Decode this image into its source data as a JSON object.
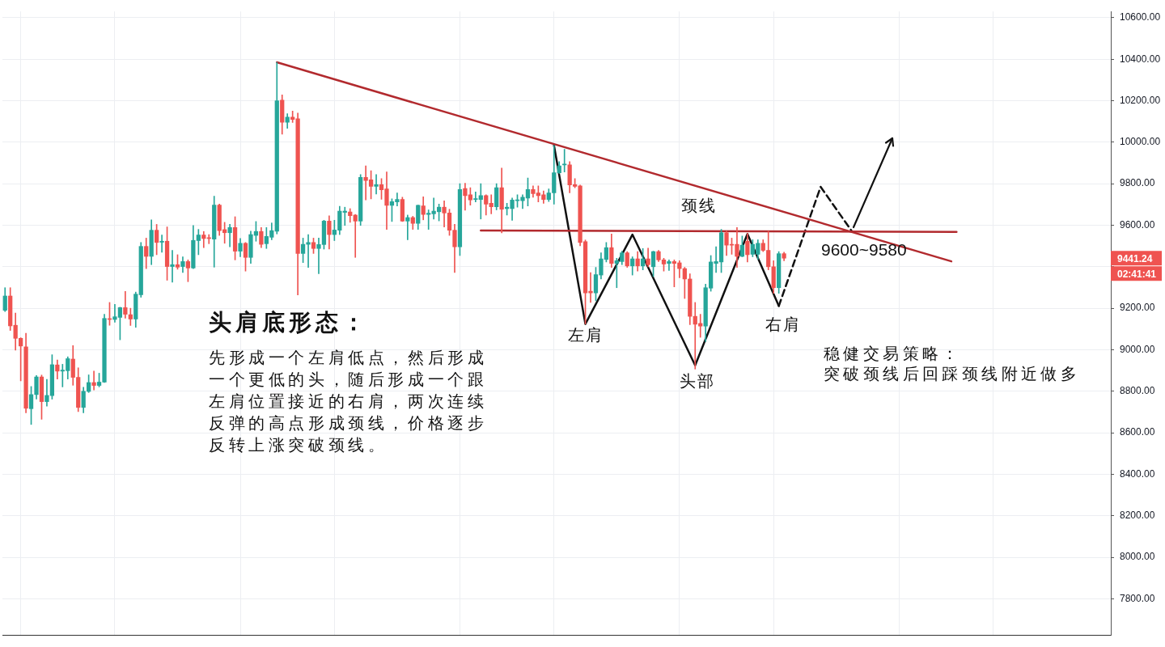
{
  "chart_data": {
    "type": "candlestick",
    "title": "头肩底形态：",
    "categories": [
      null,
      null,
      null,
      null,
      null,
      null,
      null,
      null,
      null,
      null,
      null,
      null,
      null,
      null,
      null,
      null,
      null,
      null,
      null,
      null,
      null,
      null,
      null,
      null,
      null,
      null,
      null,
      null,
      null,
      null,
      null,
      null,
      null,
      null,
      null,
      null,
      null,
      null,
      null,
      null,
      null,
      null,
      null,
      null,
      null,
      null,
      null,
      null,
      null,
      null,
      null,
      null,
      null,
      null,
      null,
      null,
      null,
      null,
      null,
      null,
      null,
      null,
      null,
      null,
      null,
      null,
      null,
      null,
      null,
      null,
      null,
      null,
      null,
      null,
      null,
      null,
      null,
      null,
      null,
      null,
      null,
      null,
      null,
      null,
      null,
      null,
      null,
      null,
      null,
      null,
      null,
      null,
      null,
      null,
      null,
      null,
      null,
      null,
      null,
      null,
      null,
      null,
      null,
      null,
      null,
      null,
      null,
      null,
      null,
      null,
      null,
      null,
      null,
      null,
      null,
      null,
      null,
      null,
      null,
      null,
      null,
      null,
      null,
      null,
      null,
      null,
      null,
      null,
      null,
      null,
      null,
      null,
      null,
      null,
      null,
      null,
      null,
      null,
      null,
      null,
      null,
      null,
      null,
      null,
      null,
      null,
      null,
      null,
      null,
      null,
      null,
      null,
      null,
      null,
      null,
      null,
      null,
      null,
      null,
      null,
      null,
      null,
      null,
      null,
      null,
      null,
      null,
      null,
      null,
      null,
      null,
      null,
      null,
      null,
      null,
      null,
      null,
      null,
      null,
      null,
      null,
      null,
      null,
      null,
      null,
      null,
      null,
      null,
      null,
      null,
      null,
      null,
      null,
      null,
      null,
      null,
      null,
      null,
      null,
      null,
      null,
      null,
      null,
      null,
      null,
      null,
      null,
      null,
      null,
      null,
      null,
      null
    ],
    "ohlc": [
      [
        9190,
        9299,
        9184,
        9259
      ],
      [
        9259,
        9299,
        9093,
        9115
      ],
      [
        9118,
        9177,
        8998,
        9055
      ],
      [
        9055,
        9058,
        8850,
        9018
      ],
      [
        9014,
        9079,
        8696,
        8718
      ],
      [
        8716,
        8823,
        8640,
        8784
      ],
      [
        8784,
        8876,
        8762,
        8869
      ],
      [
        8869,
        8878,
        8665,
        8750
      ],
      [
        8750,
        8857,
        8728,
        8780
      ],
      [
        8779,
        8976,
        8762,
        8928
      ],
      [
        8927,
        8951,
        8859,
        8897
      ],
      [
        8897,
        8930,
        8821,
        8902
      ],
      [
        8899,
        8966,
        8859,
        8957
      ],
      [
        8955,
        9020,
        8829,
        8867
      ],
      [
        8867,
        8913,
        8702,
        8722
      ],
      [
        8722,
        8819,
        8696,
        8800
      ],
      [
        8799,
        8879,
        8794,
        8842
      ],
      [
        8842,
        8897,
        8806,
        8828
      ],
      [
        8828,
        8887,
        8821,
        8844
      ],
      [
        8844,
        9171,
        8842,
        9151
      ],
      [
        9149,
        9228,
        9118,
        9146
      ],
      [
        9146,
        9219,
        9133,
        9159
      ],
      [
        9156,
        9205,
        9048,
        9203
      ],
      [
        9203,
        9281,
        9152,
        9171
      ],
      [
        9169,
        9200,
        9117,
        9148
      ],
      [
        9148,
        9278,
        9108,
        9268
      ],
      [
        9265,
        9517,
        9253,
        9498
      ],
      [
        9498,
        9538,
        9391,
        9450
      ],
      [
        9450,
        9626,
        9410,
        9576
      ],
      [
        9576,
        9604,
        9458,
        9517
      ],
      [
        9518,
        9553,
        9470,
        9523
      ],
      [
        9523,
        9592,
        9335,
        9401
      ],
      [
        9401,
        9479,
        9326,
        9410
      ],
      [
        9410,
        9458,
        9388,
        9398
      ],
      [
        9401,
        9448,
        9372,
        9425
      ],
      [
        9425,
        9433,
        9328,
        9394
      ],
      [
        9394,
        9599,
        9391,
        9527
      ],
      [
        9526,
        9580,
        9458,
        9553
      ],
      [
        9553,
        9570,
        9492,
        9536
      ],
      [
        9540,
        9555,
        9511,
        9536
      ],
      [
        9533,
        9740,
        9398,
        9697
      ],
      [
        9697,
        9702,
        9551,
        9574
      ],
      [
        9579,
        9614,
        9513,
        9564
      ],
      [
        9564,
        9605,
        9496,
        9589
      ],
      [
        9589,
        9641,
        9433,
        9475
      ],
      [
        9475,
        9536,
        9448,
        9513
      ],
      [
        9513,
        9517,
        9379,
        9445
      ],
      [
        9445,
        9571,
        9416,
        9555
      ],
      [
        9551,
        9618,
        9523,
        9570
      ],
      [
        9570,
        9589,
        9492,
        9508
      ],
      [
        9511,
        9589,
        9488,
        9546
      ],
      [
        9542,
        9611,
        9530,
        9574
      ],
      [
        9571,
        10385,
        9558,
        10200
      ],
      [
        10203,
        10228,
        10039,
        10096
      ],
      [
        10096,
        10137,
        10067,
        10121
      ],
      [
        10121,
        10150,
        10095,
        10110
      ],
      [
        10113,
        10140,
        9264,
        9464
      ],
      [
        9464,
        9538,
        9420,
        9508
      ],
      [
        9508,
        9555,
        9397,
        9517
      ],
      [
        9517,
        9538,
        9464,
        9488
      ],
      [
        9488,
        9538,
        9366,
        9507
      ],
      [
        9507,
        9624,
        9485,
        9620
      ],
      [
        9620,
        9645,
        9485,
        9555
      ],
      [
        9555,
        9624,
        9526,
        9577
      ],
      [
        9576,
        9691,
        9555,
        9668
      ],
      [
        9662,
        9687,
        9599,
        9668
      ],
      [
        9664,
        9680,
        9614,
        9646
      ],
      [
        9649,
        9652,
        9445,
        9620
      ],
      [
        9620,
        9844,
        9599,
        9831
      ],
      [
        9831,
        9886,
        9722,
        9816
      ],
      [
        9819,
        9863,
        9727,
        9787
      ],
      [
        9787,
        9844,
        9750,
        9796
      ],
      [
        9796,
        9825,
        9725,
        9771
      ],
      [
        9775,
        9857,
        9580,
        9696
      ],
      [
        9696,
        9727,
        9618,
        9714
      ],
      [
        9712,
        9756,
        9693,
        9724
      ],
      [
        9724,
        9735,
        9618,
        9620
      ],
      [
        9620,
        9649,
        9530,
        9637
      ],
      [
        9637,
        9643,
        9580,
        9609
      ],
      [
        9609,
        9697,
        9580,
        9696
      ],
      [
        9693,
        9737,
        9626,
        9652
      ],
      [
        9652,
        9674,
        9580,
        9658
      ],
      [
        9655,
        9731,
        9630,
        9668
      ],
      [
        9665,
        9702,
        9621,
        9687
      ],
      [
        9687,
        9718,
        9592,
        9659
      ],
      [
        9659,
        9677,
        9551,
        9576
      ],
      [
        9576,
        9605,
        9372,
        9496
      ],
      [
        9496,
        9800,
        9454,
        9772
      ],
      [
        9777,
        9802,
        9672,
        9743
      ],
      [
        9747,
        9781,
        9697,
        9722
      ],
      [
        9724,
        9760,
        9712,
        9728
      ],
      [
        9724,
        9800,
        9630,
        9743
      ],
      [
        9743,
        9747,
        9649,
        9702
      ],
      [
        9706,
        9747,
        9655,
        9689
      ],
      [
        9689,
        9800,
        9674,
        9781
      ],
      [
        9781,
        9875,
        9563,
        9677
      ],
      [
        9680,
        9706,
        9649,
        9687
      ],
      [
        9680,
        9731,
        9624,
        9721
      ],
      [
        9718,
        9747,
        9687,
        9722
      ],
      [
        9718,
        9747,
        9680,
        9735
      ],
      [
        9731,
        9828,
        9693,
        9772
      ],
      [
        9772,
        9790,
        9735,
        9752
      ],
      [
        9756,
        9790,
        9712,
        9743
      ],
      [
        9747,
        9765,
        9706,
        9724
      ],
      [
        9724,
        9775,
        9714,
        9756
      ],
      [
        9756,
        9985,
        9702,
        9853
      ],
      [
        9853,
        9907,
        9850,
        9886
      ],
      [
        9891,
        9966,
        9857,
        9894
      ],
      [
        9891,
        9907,
        9756,
        9794
      ],
      [
        9796,
        9825,
        9781,
        9787
      ],
      [
        9790,
        9794,
        9501,
        9517
      ],
      [
        9521,
        9529,
        9124,
        9274
      ],
      [
        9282,
        9372,
        9228,
        9274
      ],
      [
        9274,
        9397,
        9236,
        9362
      ],
      [
        9360,
        9467,
        9341,
        9438
      ],
      [
        9435,
        9517,
        9423,
        9492
      ],
      [
        9492,
        9558,
        9397,
        9416
      ],
      [
        9416,
        9441,
        9299,
        9429
      ],
      [
        9425,
        9475,
        9410,
        9467
      ],
      [
        9467,
        9473,
        9397,
        9404
      ],
      [
        9404,
        9448,
        9360,
        9438
      ],
      [
        9438,
        9473,
        9379,
        9404
      ],
      [
        9404,
        9488,
        9385,
        9438
      ],
      [
        9438,
        9490,
        9400,
        9410
      ],
      [
        9400,
        9475,
        9353,
        9473
      ],
      [
        9473,
        9479,
        9425,
        9433
      ],
      [
        9433,
        9441,
        9379,
        9413
      ],
      [
        9416,
        9433,
        9382,
        9425
      ],
      [
        9425,
        9433,
        9303,
        9416
      ],
      [
        9419,
        9429,
        9347,
        9391
      ],
      [
        9391,
        9397,
        9247,
        9341
      ],
      [
        9341,
        9366,
        9121,
        9161
      ],
      [
        9161,
        9228,
        8907,
        9123
      ],
      [
        9127,
        9171,
        9060,
        9114
      ],
      [
        9114,
        9316,
        9039,
        9299
      ],
      [
        9297,
        9454,
        9282,
        9423
      ],
      [
        9416,
        9496,
        9372,
        9425
      ],
      [
        9423,
        9580,
        9372,
        9564
      ],
      [
        9564,
        9571,
        9454,
        9504
      ],
      [
        9508,
        9538,
        9460,
        9504
      ],
      [
        9508,
        9589,
        9397,
        9450
      ],
      [
        9450,
        9548,
        9448,
        9504
      ],
      [
        9523,
        9561,
        9423,
        9458
      ],
      [
        9460,
        9530,
        9448,
        9508
      ],
      [
        9460,
        9530,
        9435,
        9513
      ],
      [
        9513,
        9530,
        9473,
        9479
      ],
      [
        9479,
        9571,
        9385,
        9400
      ],
      [
        9400,
        9429,
        9272,
        9299
      ],
      [
        9299,
        9473,
        9272,
        9463
      ],
      [
        9463,
        9470,
        9429,
        9441.24
      ],
      null,
      null,
      null,
      null,
      null,
      null,
      null,
      null,
      null,
      null,
      null,
      null,
      null,
      null,
      null,
      null,
      null,
      null,
      null,
      null,
      null,
      null,
      null,
      null,
      null,
      null,
      null,
      null,
      null,
      null,
      null,
      null,
      null,
      null,
      null,
      null,
      null,
      null,
      null,
      null,
      null,
      null,
      null,
      null,
      null,
      null,
      null,
      null,
      null,
      null,
      null,
      null,
      null,
      null,
      null,
      null,
      null,
      null,
      null,
      null,
      null,
      null
    ],
    "colors": [
      "#26a69a",
      "#ef5350",
      "#ef5350",
      "#ef5350",
      "#ef5350",
      "#26a69a",
      "#26a69a",
      "#ef5350",
      "#26a69a",
      "#26a69a",
      "#ef5350",
      "#26a69a",
      "#26a69a",
      "#ef5350",
      "#ef5350",
      "#26a69a",
      "#26a69a",
      "#ef5350",
      "#26a69a",
      "#26a69a",
      "#ef5350",
      "#26a69a",
      "#26a69a",
      "#ef5350",
      "#ef5350",
      "#26a69a",
      "#26a69a",
      "#ef5350",
      "#26a69a",
      "#ef5350",
      "#26a69a",
      "#ef5350",
      "#26a69a",
      "#ef5350",
      "#26a69a",
      "#ef5350",
      "#26a69a",
      "#26a69a",
      "#ef5350",
      "#ef5350",
      "#26a69a",
      "#ef5350",
      "#ef5350",
      "#26a69a",
      "#ef5350",
      "#26a69a",
      "#ef5350",
      "#26a69a",
      "#26a69a",
      "#ef5350",
      "#26a69a",
      "#26a69a",
      "#26a69a",
      "#ef5350",
      "#26a69a",
      "#ef5350",
      "#ef5350",
      "#26a69a",
      "#26a69a",
      "#ef5350",
      "#26a69a",
      "#26a69a",
      "#ef5350",
      "#26a69a",
      "#26a69a",
      "#26a69a",
      "#ef5350",
      "#ef5350",
      "#26a69a",
      "#ef5350",
      "#ef5350",
      "#26a69a",
      "#ef5350",
      "#ef5350",
      "#26a69a",
      "#26a69a",
      "#ef5350",
      "#26a69a",
      "#ef5350",
      "#26a69a",
      "#ef5350",
      "#26a69a",
      "#26a69a",
      "#26a69a",
      "#ef5350",
      "#ef5350",
      "#ef5350",
      "#26a69a",
      "#ef5350",
      "#ef5350",
      "#26a69a",
      "#26a69a",
      "#ef5350",
      "#ef5350",
      "#26a69a",
      "#ef5350",
      "#26a69a",
      "#26a69a",
      "#26a69a",
      "#26a69a",
      "#26a69a",
      "#ef5350",
      "#ef5350",
      "#ef5350",
      "#26a69a",
      "#26a69a",
      "#26a69a",
      "#26a69a",
      "#ef5350",
      "#ef5350",
      "#ef5350",
      "#ef5350",
      "#ef5350",
      "#26a69a",
      "#26a69a",
      "#26a69a",
      "#ef5350",
      "#26a69a",
      "#26a69a",
      "#ef5350",
      "#26a69a",
      "#ef5350",
      "#26a69a",
      "#ef5350",
      "#26a69a",
      "#ef5350",
      "#ef5350",
      "#26a69a",
      "#ef5350",
      "#ef5350",
      "#ef5350",
      "#ef5350",
      "#ef5350",
      "#ef5350",
      "#26a69a",
      "#26a69a",
      "#26a69a",
      "#26a69a",
      "#ef5350",
      "#ef5350",
      "#ef5350",
      "#26a69a",
      "#ef5350",
      "#26a69a",
      "#26a69a",
      "#ef5350",
      "#ef5350",
      "#ef5350",
      "#26a69a",
      "#ef5350",
      null,
      null,
      null,
      null,
      null,
      null,
      null,
      null,
      null,
      null,
      null,
      null,
      null,
      null,
      null,
      null,
      null,
      null,
      null,
      null,
      null,
      null,
      null,
      null,
      null,
      null,
      null,
      null,
      null,
      null,
      null,
      null,
      null,
      null,
      null,
      null,
      null,
      null,
      null,
      null,
      null,
      null,
      null,
      null,
      null,
      null,
      null,
      null,
      null,
      null,
      null,
      null,
      null,
      null,
      null,
      null,
      null,
      null,
      null,
      null,
      null,
      null
    ],
    "series": [
      {
        "type": "line",
        "color": "#b22a2e",
        "values": [
          null,
          null,
          null,
          null,
          null,
          null,
          null,
          null,
          null,
          null,
          null,
          null,
          null,
          null,
          null,
          null,
          null,
          null,
          null,
          null,
          null,
          null,
          null,
          null,
          null,
          null,
          null,
          null,
          null,
          null,
          null,
          null,
          null,
          null,
          null,
          null,
          null,
          null,
          null,
          null,
          null,
          null,
          null,
          null,
          null,
          null,
          null,
          null,
          null,
          null,
          null,
          null,
          10385,
          null,
          null,
          null,
          null,
          null,
          null,
          null,
          null,
          null,
          null,
          null,
          null,
          null,
          null,
          null,
          null,
          null,
          null,
          null,
          null,
          null,
          null,
          null,
          null,
          null,
          null,
          null,
          null,
          null,
          null,
          null,
          null,
          null,
          null,
          null,
          null,
          null,
          null,
          null,
          null,
          null,
          null,
          null,
          null,
          null,
          null,
          null,
          null,
          null,
          null,
          null,
          null,
          null,
          null,
          null,
          null,
          null,
          null,
          null,
          null,
          null,
          null,
          null,
          null,
          null,
          null,
          null,
          null,
          null,
          null,
          null,
          null,
          null,
          null,
          null,
          null,
          null,
          null,
          null,
          null,
          null,
          null,
          null,
          null,
          null,
          null,
          null,
          null,
          null,
          null,
          null,
          null,
          null,
          null,
          null,
          null,
          null,
          null,
          null,
          null,
          null,
          null,
          null,
          null,
          null,
          null,
          null,
          null,
          null,
          null,
          null,
          null,
          null,
          null,
          null,
          null,
          null,
          null,
          null,
          null,
          null,
          null,
          null,
          null,
          null,
          null,
          null,
          null,
          9426,
          null,
          null,
          null,
          null,
          null,
          null,
          null,
          null,
          null,
          null,
          null,
          null,
          null,
          null,
          null,
          null,
          null,
          null,
          null,
          null,
          null,
          null,
          null,
          null,
          null,
          null,
          null,
          null,
          null,
          null
        ]
      },
      {
        "type": "line",
        "color": "#b22a2e",
        "values": [
          null,
          null,
          null,
          null,
          null,
          null,
          null,
          null,
          null,
          null,
          null,
          null,
          null,
          null,
          null,
          null,
          null,
          null,
          null,
          null,
          null,
          null,
          null,
          null,
          null,
          null,
          null,
          null,
          null,
          null,
          null,
          null,
          null,
          null,
          null,
          null,
          null,
          null,
          null,
          null,
          null,
          null,
          null,
          null,
          null,
          null,
          null,
          null,
          null,
          null,
          null,
          null,
          null,
          null,
          null,
          null,
          null,
          null,
          null,
          null,
          null,
          null,
          null,
          null,
          null,
          null,
          null,
          null,
          null,
          null,
          null,
          null,
          null,
          null,
          null,
          null,
          null,
          null,
          null,
          null,
          null,
          null,
          null,
          null,
          null,
          null,
          null,
          null,
          null,
          null,
          null,
          9575,
          null,
          null,
          null,
          null,
          null,
          null,
          null,
          null,
          null,
          null,
          null,
          null,
          null,
          null,
          null,
          null,
          null,
          null,
          null,
          null,
          null,
          null,
          null,
          null,
          null,
          null,
          null,
          null,
          null,
          null,
          null,
          null,
          null,
          null,
          null,
          null,
          null,
          null,
          null,
          null,
          null,
          null,
          null,
          null,
          null,
          null,
          null,
          null,
          null,
          null,
          null,
          null,
          null,
          null,
          null,
          null,
          null,
          null,
          null,
          null,
          null,
          null,
          null,
          null,
          null,
          null,
          null,
          null,
          null,
          null,
          null,
          null,
          null,
          null,
          null,
          null,
          null,
          null,
          null,
          null,
          null,
          null,
          null,
          null,
          null,
          null,
          null,
          null,
          null,
          null,
          9568,
          null,
          null,
          null,
          null,
          null,
          null,
          null,
          null,
          null,
          null,
          null,
          null,
          null,
          null,
          null,
          null,
          null,
          null,
          null,
          null,
          null,
          null,
          null,
          null,
          null,
          null,
          null,
          null,
          null
        ]
      },
      {
        "type": "line",
        "color": "#111111",
        "values": [
          null,
          null,
          null,
          null,
          null,
          null,
          null,
          null,
          null,
          null,
          null,
          null,
          null,
          null,
          null,
          null,
          null,
          null,
          null,
          null,
          null,
          null,
          null,
          null,
          null,
          null,
          null,
          null,
          null,
          null,
          null,
          null,
          null,
          null,
          null,
          null,
          null,
          null,
          null,
          null,
          null,
          null,
          null,
          null,
          null,
          null,
          null,
          null,
          null,
          null,
          null,
          null,
          null,
          null,
          null,
          null,
          null,
          null,
          null,
          null,
          null,
          null,
          null,
          null,
          null,
          null,
          null,
          null,
          null,
          null,
          null,
          null,
          null,
          null,
          null,
          null,
          null,
          null,
          null,
          null,
          null,
          null,
          null,
          null,
          null,
          null,
          null,
          null,
          null,
          null,
          null,
          null,
          null,
          null,
          null,
          null,
          null,
          null,
          null,
          null,
          null,
          null,
          null,
          null,
          null,
          9985,
          null,
          null,
          null,
          null,
          null,
          9124,
          null,
          null,
          null,
          null,
          null,
          null,
          null,
          null,
          9555,
          null,
          null,
          null,
          null,
          null,
          null,
          null,
          null,
          null,
          null,
          null,
          8925,
          null,
          null,
          null,
          null,
          null,
          null,
          null,
          null,
          null,
          9558,
          null,
          null,
          null,
          null,
          null,
          9211,
          null,
          null,
          null,
          null,
          null,
          null,
          null,
          null,
          null,
          null,
          null,
          null,
          null,
          null,
          null,
          null,
          null,
          null,
          null,
          null,
          null,
          null,
          null,
          null,
          null,
          null,
          null,
          null,
          null,
          null,
          null,
          null,
          null,
          null,
          null,
          null,
          null,
          null,
          null,
          null,
          null,
          null,
          null,
          null,
          null,
          null,
          null,
          null,
          null,
          null,
          null,
          null,
          null,
          null,
          null,
          null,
          null,
          null,
          null,
          null,
          null,
          null,
          null
        ]
      },
      {
        "type": "line",
        "color": "#111111",
        "line_style": "dashed",
        "values": [
          null,
          null,
          null,
          null,
          null,
          null,
          null,
          null,
          null,
          null,
          null,
          null,
          null,
          null,
          null,
          null,
          null,
          null,
          null,
          null,
          null,
          null,
          null,
          null,
          null,
          null,
          null,
          null,
          null,
          null,
          null,
          null,
          null,
          null,
          null,
          null,
          null,
          null,
          null,
          null,
          null,
          null,
          null,
          null,
          null,
          null,
          null,
          null,
          null,
          null,
          null,
          null,
          null,
          null,
          null,
          null,
          null,
          null,
          null,
          null,
          null,
          null,
          null,
          null,
          null,
          null,
          null,
          null,
          null,
          null,
          null,
          null,
          null,
          null,
          null,
          null,
          null,
          null,
          null,
          null,
          null,
          null,
          null,
          null,
          null,
          null,
          null,
          null,
          null,
          null,
          null,
          null,
          null,
          null,
          null,
          null,
          null,
          null,
          null,
          null,
          null,
          null,
          null,
          null,
          null,
          null,
          null,
          null,
          null,
          null,
          null,
          null,
          null,
          null,
          null,
          null,
          null,
          null,
          null,
          null,
          null,
          null,
          null,
          null,
          null,
          null,
          null,
          null,
          null,
          null,
          null,
          null,
          null,
          null,
          null,
          null,
          null,
          null,
          null,
          null,
          null,
          null,
          null,
          null,
          null,
          null,
          null,
          null,
          9211,
          null,
          null,
          null,
          null,
          null,
          null,
          null,
          9785,
          null,
          null,
          null,
          null,
          null,
          9570,
          null,
          null,
          null,
          null,
          null,
          null,
          null,
          null,
          null,
          null,
          null,
          null,
          null,
          null,
          null,
          null,
          null,
          null,
          null,
          null,
          null,
          null,
          null,
          null,
          null,
          null,
          null,
          null,
          null,
          null,
          null,
          null,
          null,
          null,
          null,
          null,
          null,
          null,
          null,
          null,
          null,
          null,
          null,
          null,
          null,
          null,
          null,
          null,
          null
        ]
      }
    ],
    "ylim": [
      7623,
      10630
    ],
    "yticks": [
      {
        "value": 7800,
        "label": "7800.00"
      },
      {
        "value": 8000,
        "label": "8000.00"
      },
      {
        "value": 8200,
        "label": "8200.00"
      },
      {
        "value": 8400,
        "label": "8400.00"
      },
      {
        "value": 8600,
        "label": "8600.00"
      },
      {
        "value": 8800,
        "label": "8800.00"
      },
      {
        "value": 9000,
        "label": "9000.00"
      },
      {
        "value": 9200,
        "label": "9200.00"
      },
      {
        "value": 9400,
        "label": null
      },
      {
        "value": 9600,
        "label": "9600.00"
      },
      {
        "value": 9800,
        "label": "9800.00"
      },
      {
        "value": 10000,
        "label": "10000.00"
      },
      {
        "value": 10200,
        "label": "10200.00"
      },
      {
        "value": 10400,
        "label": "10400.00"
      },
      {
        "value": 10600,
        "label": "10600.00"
      }
    ],
    "tick_labels": "y",
    "grid": true,
    "annotations": [
      "先形成一个左肩低点，然后形成一个更低的头，随后形成一个跟左肩位置接近的右肩，两次连续反弹的高点形成颈线，价格逐步反转上涨突破颈线。",
      "稳健交易策略：",
      "突破颈线后回踩颈线附近做多",
      "颈线",
      "左肩",
      "头部",
      "右肩",
      "9600~9580",
      "9441.24",
      "02:41:41"
    ]
  }
}
